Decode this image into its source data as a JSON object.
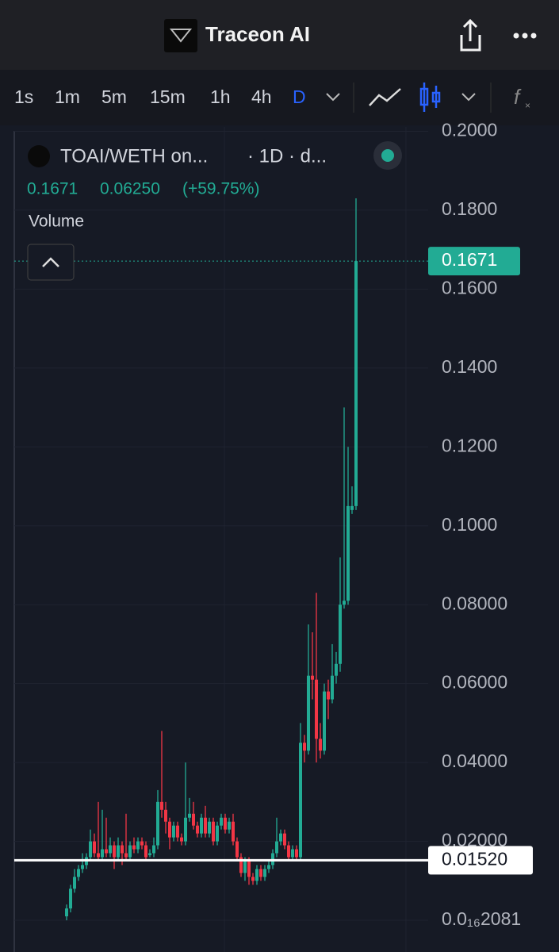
{
  "header": {
    "title": "Traceon AI"
  },
  "toolbar": {
    "intervals": [
      "1s",
      "1m",
      "5m",
      "15m",
      "1h",
      "4h",
      "D"
    ]
  },
  "legend": {
    "symbol": "TOAI/WETH on...",
    "interval": "· 1D · d...",
    "close": "0.1671",
    "change": "0.06250",
    "change_pct": "(+59.75%)",
    "volume": "Volume"
  },
  "chart_data": {
    "type": "candlestick",
    "up_color": "#22ab94",
    "down_color": "#f23645",
    "grid": true,
    "open": [
      0.001,
      0.003,
      0.008,
      0.011,
      0.013,
      0.014,
      0.016,
      0.02,
      0.017,
      0.016,
      0.018,
      0.017,
      0.019,
      0.016,
      0.019,
      0.017,
      0.016,
      0.019,
      0.018,
      0.02,
      0.019,
      0.0165,
      0.017,
      0.019,
      0.03,
      0.028,
      0.025,
      0.021,
      0.024,
      0.021,
      0.02,
      0.026,
      0.027,
      0.024,
      0.022,
      0.026,
      0.022,
      0.025,
      0.02,
      0.024,
      0.026,
      0.023,
      0.025,
      0.02,
      0.016,
      0.012,
      0.015,
      0.011,
      0.01,
      0.013,
      0.011,
      0.013,
      0.014,
      0.017,
      0.02,
      0.022,
      0.019,
      0.016,
      0.018,
      0.016,
      0.045,
      0.043,
      0.062,
      0.061,
      0.046,
      0.043,
      0.058,
      0.056,
      0.062,
      0.065,
      0.08,
      0.081,
      0.104,
      0.105
    ],
    "high": [
      0.004,
      0.009,
      0.013,
      0.014,
      0.017,
      0.017,
      0.023,
      0.022,
      0.03,
      0.028,
      0.026,
      0.021,
      0.02,
      0.021,
      0.02,
      0.027,
      0.02,
      0.021,
      0.021,
      0.021,
      0.02,
      0.018,
      0.021,
      0.033,
      0.048,
      0.03,
      0.026,
      0.025,
      0.025,
      0.022,
      0.04,
      0.031,
      0.03,
      0.025,
      0.027,
      0.029,
      0.026,
      0.026,
      0.025,
      0.027,
      0.027,
      0.026,
      0.027,
      0.021,
      0.017,
      0.016,
      0.016,
      0.012,
      0.014,
      0.014,
      0.014,
      0.015,
      0.018,
      0.026,
      0.023,
      0.023,
      0.02,
      0.019,
      0.019,
      0.05,
      0.047,
      0.075,
      0.073,
      0.083,
      0.05,
      0.06,
      0.061,
      0.07,
      0.068,
      0.092,
      0.13,
      0.12,
      0.11,
      0.183
    ],
    "low": [
      0.0,
      0.002,
      0.007,
      0.01,
      0.012,
      0.013,
      0.015,
      0.016,
      0.015,
      0.015,
      0.016,
      0.016,
      0.013,
      0.015,
      0.014,
      0.015,
      0.015,
      0.017,
      0.017,
      0.018,
      0.015,
      0.016,
      0.016,
      0.018,
      0.026,
      0.022,
      0.018,
      0.02,
      0.02,
      0.019,
      0.019,
      0.025,
      0.023,
      0.021,
      0.021,
      0.021,
      0.021,
      0.019,
      0.019,
      0.023,
      0.022,
      0.022,
      0.019,
      0.015,
      0.011,
      0.01,
      0.009,
      0.009,
      0.009,
      0.01,
      0.01,
      0.012,
      0.013,
      0.016,
      0.019,
      0.018,
      0.015,
      0.015,
      0.015,
      0.015,
      0.04,
      0.042,
      0.056,
      0.04,
      0.041,
      0.042,
      0.051,
      0.055,
      0.06,
      0.063,
      0.079,
      0.08,
      0.103,
      0.104
    ],
    "close": [
      0.003,
      0.008,
      0.011,
      0.013,
      0.014,
      0.016,
      0.02,
      0.017,
      0.016,
      0.018,
      0.017,
      0.019,
      0.016,
      0.019,
      0.017,
      0.016,
      0.019,
      0.018,
      0.02,
      0.019,
      0.016,
      0.017,
      0.019,
      0.03,
      0.028,
      0.025,
      0.021,
      0.024,
      0.021,
      0.02,
      0.026,
      0.027,
      0.024,
      0.022,
      0.026,
      0.022,
      0.025,
      0.02,
      0.024,
      0.026,
      0.023,
      0.025,
      0.02,
      0.016,
      0.012,
      0.015,
      0.011,
      0.01,
      0.013,
      0.011,
      0.013,
      0.014,
      0.017,
      0.02,
      0.022,
      0.019,
      0.016,
      0.018,
      0.016,
      0.045,
      0.043,
      0.062,
      0.061,
      0.046,
      0.043,
      0.058,
      0.056,
      0.062,
      0.065,
      0.08,
      0.081,
      0.105,
      0.105,
      0.1671
    ],
    "ylim": [
      -0.00804,
      0.2011
    ],
    "yticks": [
      {
        "value": 0.2,
        "label": "0.2000"
      },
      {
        "value": 0.18,
        "label": "0.1800"
      },
      {
        "value": 0.16,
        "label": "0.1600"
      },
      {
        "value": 0.14,
        "label": "0.1400"
      },
      {
        "value": 0.12,
        "label": "0.1200"
      },
      {
        "value": 0.1,
        "label": "0.1000"
      },
      {
        "value": 0.08,
        "label": "0.08000"
      },
      {
        "value": 0.06,
        "label": "0.06000"
      },
      {
        "value": 0.04,
        "label": "0.04000"
      },
      {
        "value": 0.02,
        "label": "0.02000"
      },
      {
        "value": 0,
        "label": "0.0₁₆2081"
      }
    ],
    "last_price": 0.1671,
    "horizontal_line": {
      "value": 0.0152,
      "label": "0.01520"
    }
  }
}
